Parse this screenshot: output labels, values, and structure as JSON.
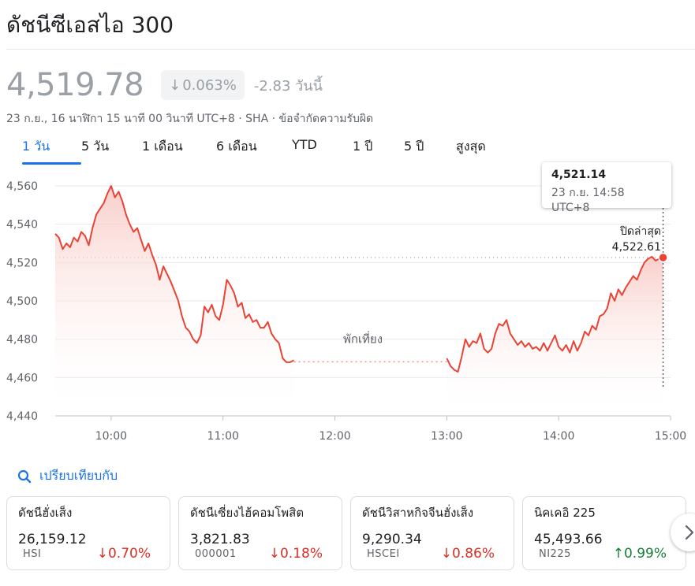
{
  "header": {
    "title": "ดัชนีซีเอสไอ 300"
  },
  "quote": {
    "price": "4,519.78",
    "arrow_icon": "arrow-down-icon",
    "pct_change": "0.063%",
    "change_text": "-2.83 วันนี้",
    "meta": "23 ก.ย., 16 นาฬิกา 15 นาที 00 วินาที UTC+8 · SHA · ข้อจำกัดความรับผิด"
  },
  "ranges": [
    {
      "label": "1 วัน",
      "active": true
    },
    {
      "label": "5 วัน"
    },
    {
      "label": "1 เดือน"
    },
    {
      "label": "6 เดือน"
    },
    {
      "label": "YTD"
    },
    {
      "label": "1 ปี"
    },
    {
      "label": "5 ปี"
    },
    {
      "label": "สูงสุด"
    }
  ],
  "tooltip": {
    "value": "4,521.14",
    "time": "23 ก.ย. 14:58 UTC+8"
  },
  "chart_data": {
    "type": "line",
    "colors": {
      "line": "#ea4335",
      "fill_top": "#f8c9c4",
      "reference": "#9aa0a6"
    },
    "yticks": [
      "4,560",
      "4,540",
      "4,520",
      "4,500",
      "4,480",
      "4,460",
      "4,440"
    ],
    "ylim": [
      4440,
      4565
    ],
    "xticks": [
      "10:00",
      "11:00",
      "12:00",
      "13:00",
      "14:00",
      "15:00"
    ],
    "xlim_minutes": [
      570,
      900
    ],
    "previous_close": {
      "label": "ปิดล่าสุด",
      "value_text": "4,522.61",
      "value": 4522.61
    },
    "break_label": "พักเที่ยง",
    "morning": [
      [
        570,
        4535
      ],
      [
        572,
        4533
      ],
      [
        574,
        4527
      ],
      [
        576,
        4530
      ],
      [
        578,
        4528
      ],
      [
        580,
        4533
      ],
      [
        582,
        4531
      ],
      [
        584,
        4536
      ],
      [
        586,
        4534
      ],
      [
        588,
        4529
      ],
      [
        590,
        4538
      ],
      [
        592,
        4545
      ],
      [
        594,
        4548
      ],
      [
        596,
        4551
      ],
      [
        598,
        4556
      ],
      [
        600,
        4560
      ],
      [
        602,
        4554
      ],
      [
        604,
        4557
      ],
      [
        606,
        4552
      ],
      [
        608,
        4545
      ],
      [
        610,
        4540
      ],
      [
        612,
        4536
      ],
      [
        614,
        4538
      ],
      [
        616,
        4532
      ],
      [
        618,
        4526
      ],
      [
        620,
        4530
      ],
      [
        622,
        4524
      ],
      [
        624,
        4519
      ],
      [
        626,
        4511
      ],
      [
        628,
        4518
      ],
      [
        630,
        4514
      ],
      [
        632,
        4510
      ],
      [
        634,
        4505
      ],
      [
        636,
        4500
      ],
      [
        638,
        4492
      ],
      [
        640,
        4486
      ],
      [
        642,
        4484
      ],
      [
        644,
        4480
      ],
      [
        646,
        4478
      ],
      [
        648,
        4482
      ],
      [
        650,
        4497
      ],
      [
        652,
        4494
      ],
      [
        654,
        4498
      ],
      [
        656,
        4492
      ],
      [
        658,
        4490
      ],
      [
        660,
        4498
      ],
      [
        662,
        4511
      ],
      [
        664,
        4508
      ],
      [
        666,
        4504
      ],
      [
        668,
        4497
      ],
      [
        670,
        4499
      ],
      [
        672,
        4491
      ],
      [
        674,
        4493
      ],
      [
        676,
        4489
      ],
      [
        678,
        4490
      ],
      [
        680,
        4486
      ],
      [
        682,
        4486
      ],
      [
        684,
        4489
      ],
      [
        686,
        4483
      ],
      [
        688,
        4480
      ],
      [
        690,
        4478
      ],
      [
        692,
        4470
      ],
      [
        694,
        4468
      ],
      [
        696,
        4468
      ],
      [
        698,
        4469
      ]
    ],
    "afternoon": [
      [
        780,
        4470
      ],
      [
        782,
        4466
      ],
      [
        784,
        4464
      ],
      [
        786,
        4463
      ],
      [
        788,
        4471
      ],
      [
        790,
        4480
      ],
      [
        792,
        4476
      ],
      [
        794,
        4479
      ],
      [
        796,
        4478
      ],
      [
        798,
        4483
      ],
      [
        800,
        4475
      ],
      [
        802,
        4473
      ],
      [
        804,
        4475
      ],
      [
        806,
        4483
      ],
      [
        808,
        4488
      ],
      [
        810,
        4487
      ],
      [
        812,
        4490
      ],
      [
        814,
        4483
      ],
      [
        816,
        4480
      ],
      [
        818,
        4477
      ],
      [
        820,
        4479
      ],
      [
        822,
        4476
      ],
      [
        824,
        4478
      ],
      [
        826,
        4475
      ],
      [
        828,
        4476
      ],
      [
        830,
        4474
      ],
      [
        832,
        4478
      ],
      [
        834,
        4474
      ],
      [
        836,
        4478
      ],
      [
        838,
        4482
      ],
      [
        840,
        4476
      ],
      [
        842,
        4474
      ],
      [
        844,
        4477
      ],
      [
        846,
        4473
      ],
      [
        848,
        4479
      ],
      [
        850,
        4474
      ],
      [
        852,
        4478
      ],
      [
        854,
        4484
      ],
      [
        856,
        4482
      ],
      [
        858,
        4487
      ],
      [
        860,
        4485
      ],
      [
        862,
        4492
      ],
      [
        864,
        4493
      ],
      [
        866,
        4496
      ],
      [
        868,
        4504
      ],
      [
        870,
        4500
      ],
      [
        872,
        4506
      ],
      [
        874,
        4503
      ],
      [
        876,
        4507
      ],
      [
        878,
        4510
      ],
      [
        880,
        4513
      ],
      [
        882,
        4511
      ],
      [
        884,
        4516
      ],
      [
        886,
        4520
      ],
      [
        888,
        4522
      ],
      [
        890,
        4523
      ],
      [
        892,
        4521
      ],
      [
        894,
        4522
      ],
      [
        896,
        4522.61
      ]
    ]
  },
  "compare": {
    "icon": "search-icon",
    "label": "เปรียบเทียบกับ"
  },
  "cards": [
    {
      "name": "ดัชนีฮั่งเส็ง",
      "price": "26,159.12",
      "symbol": "HSI",
      "change": "0.70%",
      "direction": "down"
    },
    {
      "name": "ดัชนีเซี่ยงไฮ้คอมโพสิต",
      "price": "3,821.83",
      "symbol": "000001",
      "change": "0.18%",
      "direction": "down"
    },
    {
      "name": "ดัชนีวิสาหกิจจีนฮั่งเส็ง",
      "price": "9,290.34",
      "symbol": "HSCEI",
      "change": "0.86%",
      "direction": "down"
    },
    {
      "name": "นิคเคอิ 225",
      "price": "45,493.66",
      "symbol": "NI225",
      "change": "0.99%",
      "direction": "up"
    }
  ],
  "next_button": {
    "icon": "chevron-right-icon"
  }
}
